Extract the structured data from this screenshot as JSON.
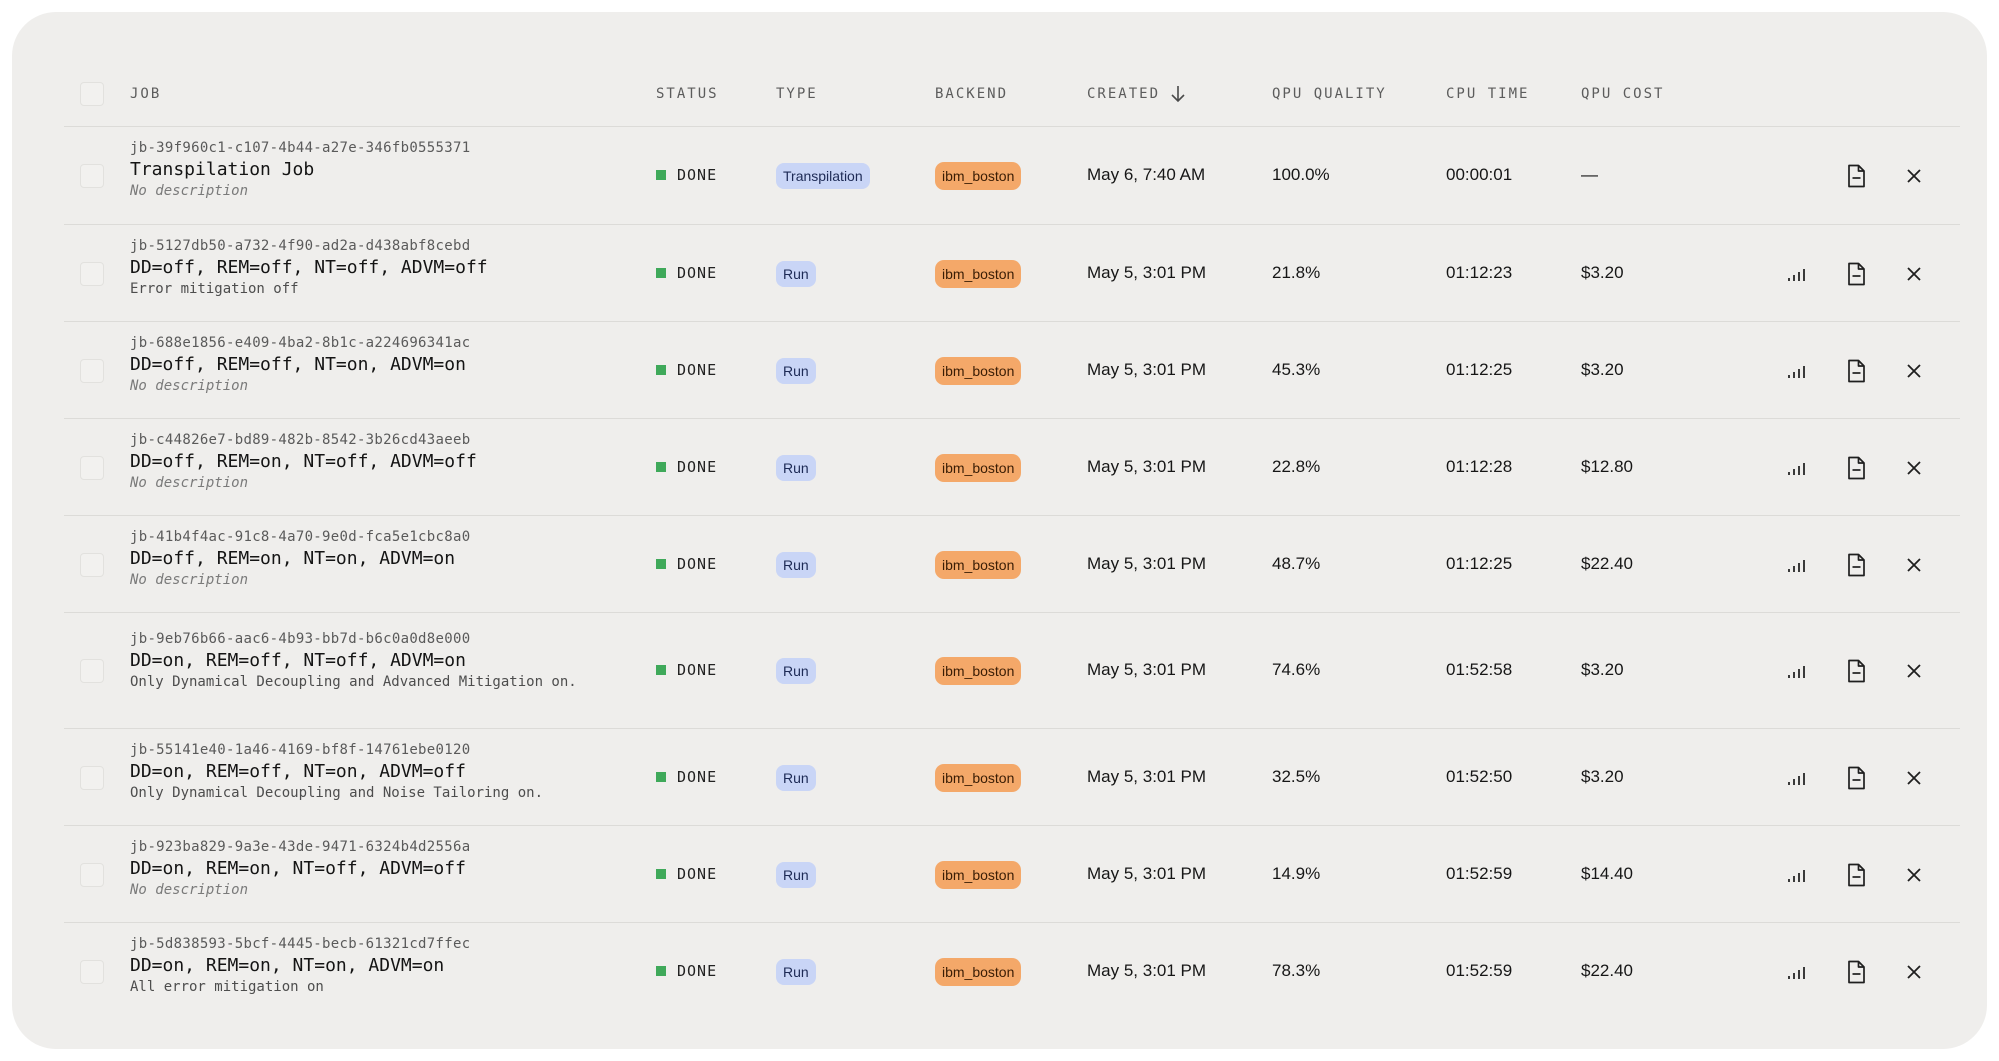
{
  "columns": {
    "job": "JOB",
    "status": "STATUS",
    "type": "TYPE",
    "backend": "BACKEND",
    "created": "CREATED",
    "qpu_quality": "QPU QUALITY",
    "cpu_time": "CPU TIME",
    "qpu_cost": "QPU COST"
  },
  "icons": {
    "sort": "arrow-down-icon",
    "signal": "signal-bars-icon",
    "document": "document-icon",
    "close": "close-icon"
  },
  "colors": {
    "panel": "#efeeec",
    "status_done": "#3fa95a",
    "type_badge": "#c9d5f6",
    "backend_badge": "#f4a869"
  },
  "rows": [
    {
      "id": "jb-39f960c1-c107-4b44-a27e-346fb0555371",
      "title": "Transpilation Job",
      "description": "No description",
      "description_placeholder": true,
      "status": "DONE",
      "type": "Transpilation",
      "backend": "ibm_boston",
      "created": "May 6, 7:40 AM",
      "qpu_quality": "100.0%",
      "cpu_time": "00:00:01",
      "qpu_cost": "—",
      "has_signal": false
    },
    {
      "id": "jb-5127db50-a732-4f90-ad2a-d438abf8cebd",
      "title": "DD=off, REM=off, NT=off, ADVM=off",
      "description": "Error mitigation off",
      "description_placeholder": false,
      "status": "DONE",
      "type": "Run",
      "backend": "ibm_boston",
      "created": "May 5, 3:01 PM",
      "qpu_quality": "21.8%",
      "cpu_time": "01:12:23",
      "qpu_cost": "$3.20",
      "has_signal": true
    },
    {
      "id": "jb-688e1856-e409-4ba2-8b1c-a224696341ac",
      "title": "DD=off, REM=off, NT=on, ADVM=on",
      "description": "No description",
      "description_placeholder": true,
      "status": "DONE",
      "type": "Run",
      "backend": "ibm_boston",
      "created": "May 5, 3:01 PM",
      "qpu_quality": "45.3%",
      "cpu_time": "01:12:25",
      "qpu_cost": "$3.20",
      "has_signal": true
    },
    {
      "id": "jb-c44826e7-bd89-482b-8542-3b26cd43aeeb",
      "title": "DD=off, REM=on, NT=off, ADVM=off",
      "description": "No description",
      "description_placeholder": true,
      "status": "DONE",
      "type": "Run",
      "backend": "ibm_boston",
      "created": "May 5, 3:01 PM",
      "qpu_quality": "22.8%",
      "cpu_time": "01:12:28",
      "qpu_cost": "$12.80",
      "has_signal": true
    },
    {
      "id": "jb-41b4f4ac-91c8-4a70-9e0d-fca5e1cbc8a0",
      "title": "DD=off, REM=on, NT=on, ADVM=on",
      "description": "No description",
      "description_placeholder": true,
      "status": "DONE",
      "type": "Run",
      "backend": "ibm_boston",
      "created": "May 5, 3:01 PM",
      "qpu_quality": "48.7%",
      "cpu_time": "01:12:25",
      "qpu_cost": "$22.40",
      "has_signal": true
    },
    {
      "id": "jb-9eb76b66-aac6-4b93-bb7d-b6c0a0d8e000",
      "title": "DD=on, REM=off, NT=off, ADVM=on",
      "description": "Only Dynamical Decoupling and Advanced Mitigation on.",
      "description_placeholder": false,
      "status": "DONE",
      "type": "Run",
      "backend": "ibm_boston",
      "created": "May 5, 3:01 PM",
      "qpu_quality": "74.6%",
      "cpu_time": "01:52:58",
      "qpu_cost": "$3.20",
      "has_signal": true
    },
    {
      "id": "jb-55141e40-1a46-4169-bf8f-14761ebe0120",
      "title": "DD=on, REM=off, NT=on, ADVM=off",
      "description": "Only Dynamical Decoupling and Noise Tailoring on.",
      "description_placeholder": false,
      "status": "DONE",
      "type": "Run",
      "backend": "ibm_boston",
      "created": "May 5, 3:01 PM",
      "qpu_quality": "32.5%",
      "cpu_time": "01:52:50",
      "qpu_cost": "$3.20",
      "has_signal": true
    },
    {
      "id": "jb-923ba829-9a3e-43de-9471-6324b4d2556a",
      "title": "DD=on, REM=on, NT=off, ADVM=off",
      "description": "No description",
      "description_placeholder": true,
      "status": "DONE",
      "type": "Run",
      "backend": "ibm_boston",
      "created": "May 5, 3:01 PM",
      "qpu_quality": "14.9%",
      "cpu_time": "01:52:59",
      "qpu_cost": "$14.40",
      "has_signal": true
    },
    {
      "id": "jb-5d838593-5bcf-4445-becb-61321cd7ffec",
      "title": "DD=on, REM=on, NT=on, ADVM=on",
      "description": "All error mitigation on",
      "description_placeholder": false,
      "status": "DONE",
      "type": "Run",
      "backend": "ibm_boston",
      "created": "May 5, 3:01 PM",
      "qpu_quality": "78.3%",
      "cpu_time": "01:52:59",
      "qpu_cost": "$22.40",
      "has_signal": true
    }
  ]
}
